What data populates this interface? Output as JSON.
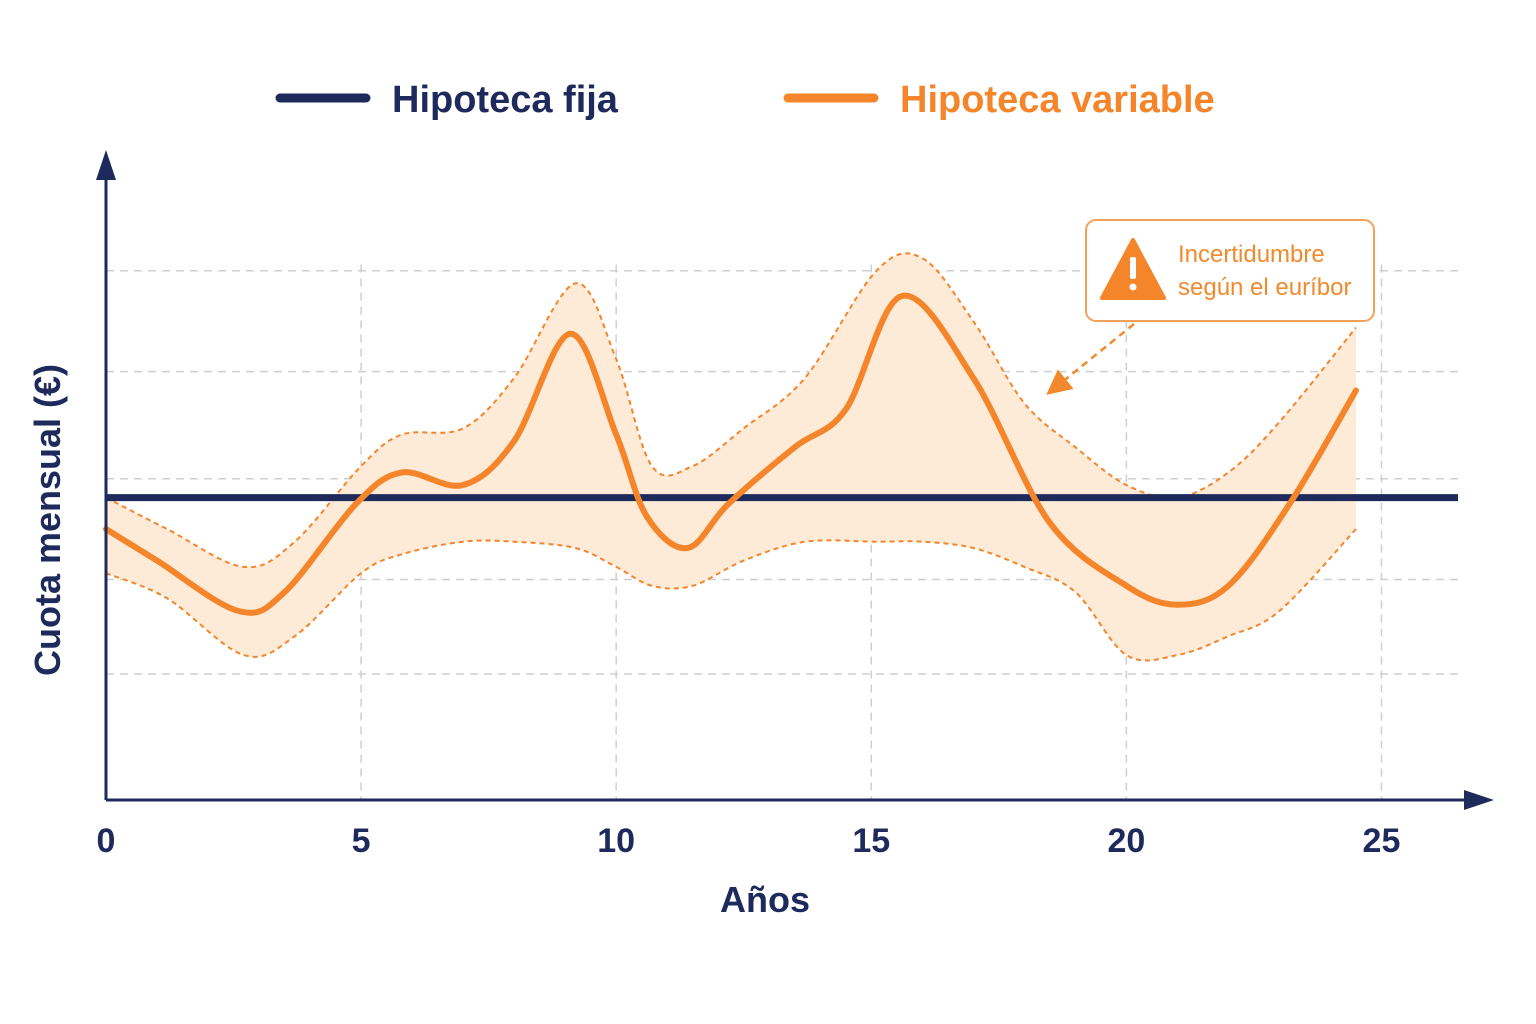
{
  "colors": {
    "fixed": "#1f2a5c",
    "variable": "#f5852a",
    "band_fill": "#fdebd8",
    "grid": "#cfcfcf",
    "axis": "#1f2a5c"
  },
  "legend": {
    "fixed_label": "Hipoteca fija",
    "variable_label": "Hipoteca variable"
  },
  "annotation": {
    "line1": "Incertidumbre",
    "line2": "según el euríbor",
    "icon": "warning-icon"
  },
  "chart_data": {
    "type": "line",
    "xlabel": "Años",
    "ylabel": "Cuota mensual (€)",
    "xlim": [
      0,
      26.5
    ],
    "ylim": [
      0,
      100
    ],
    "xticks": [
      0,
      5,
      10,
      15,
      20,
      25
    ],
    "grid": true,
    "legend_position": "top",
    "y_tick_labels_shown": false,
    "series": [
      {
        "name": "Hipoteca fija",
        "x": [
          0,
          26.5
        ],
        "y": [
          48,
          48
        ]
      },
      {
        "name": "Hipoteca variable",
        "x": [
          0,
          1,
          2.6,
          3.5,
          4.9,
          5.8,
          7,
          8,
          9.1,
          10,
          10.6,
          11.4,
          12.2,
          13.5,
          14.5,
          15.6,
          17,
          18.5,
          20,
          21,
          22,
          23.2,
          24.5
        ],
        "y": [
          43,
          38,
          30,
          33,
          47,
          52,
          50,
          57,
          74,
          58,
          45,
          40,
          47,
          56,
          62,
          80,
          67,
          44,
          34,
          31,
          34,
          47,
          65
        ]
      }
    ],
    "band": {
      "name": "Incertidumbre según el euríbor",
      "x": [
        0,
        1.2,
        2.7,
        3.7,
        5,
        5.8,
        7,
        8,
        9.2,
        10,
        10.7,
        11.5,
        12.5,
        13.7,
        15.1,
        16,
        17,
        18,
        19,
        20,
        21,
        22,
        23,
        24.5
      ],
      "upper": [
        48,
        43,
        37,
        41,
        53,
        58,
        59,
        67,
        82,
        70,
        53,
        53,
        59,
        67,
        84,
        86,
        76,
        63,
        56,
        50,
        48,
        52,
        60,
        75
      ],
      "lower": [
        36,
        32,
        23,
        26,
        36,
        39,
        41,
        41,
        40,
        37,
        34,
        34,
        38,
        41,
        41,
        41,
        40,
        37,
        33,
        23,
        23,
        26,
        30,
        43
      ]
    }
  }
}
